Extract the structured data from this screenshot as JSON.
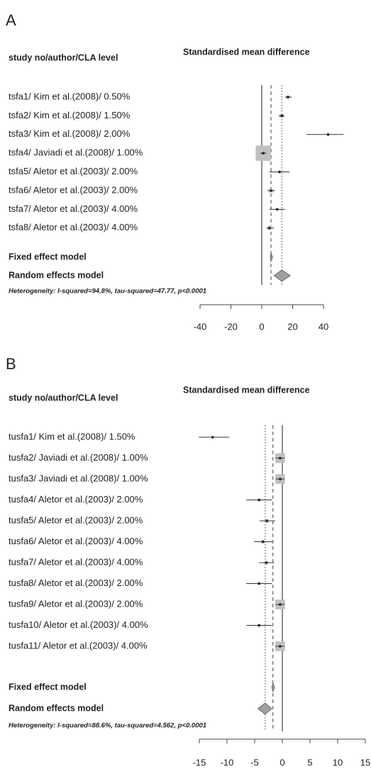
{
  "chart_data": [
    {
      "type": "forest",
      "panel_label": "A",
      "column_header": "study no/author/CLA level",
      "title": "Standardised mean difference",
      "categories": [
        "tsfa1/ Kim et al.(2008)/ 0.50%",
        "tsfa2/ Kim et al.(2008)/ 1.50%",
        "tsfa3/ Kim et al.(2008)/ 2.00%",
        "tsfa4/ Javiadi et al.(2008)/ 1.00%",
        "tsfa5/ Aletor et al.(2003)/ 2.00%",
        "tsfa6/ Aletor et al.(2003)/ 2.00%",
        "tsfa7/ Aletor et al.(2003)/ 4.00%",
        "tsfa8/ Aletor et al.(2003)/ 4.00%"
      ],
      "values": [
        17,
        13,
        43,
        1,
        11.5,
        6,
        10,
        5
      ],
      "ci_lower": [
        15,
        11,
        29,
        -1,
        5,
        3.5,
        5,
        3
      ],
      "ci_upper": [
        19.5,
        15,
        53,
        3,
        18,
        8.5,
        15,
        8
      ],
      "weights": [
        2,
        3,
        0.5,
        45,
        1,
        3,
        1,
        3
      ],
      "summary_labels": [
        "Fixed effect model",
        "Random effects model"
      ],
      "summary_values": [
        6,
        13
      ],
      "summary_lower": [
        5.5,
        8
      ],
      "summary_upper": [
        7,
        18.5
      ],
      "annotation": "Heterogeneity: I-squared=94.8%, tau-squared=47.77, p<0.0001",
      "xlim": [
        -40,
        40
      ],
      "xticks": [
        -40,
        -20,
        0,
        20,
        40
      ],
      "square_color": "#c0c0c0",
      "diamond_color": "#a0a0a0"
    },
    {
      "type": "forest",
      "panel_label": "B",
      "column_header": "study no/author/CLA level",
      "title": "Standardised mean difference",
      "categories": [
        "tusfa1/ Kim et al.(2008)/ 1.50%",
        "tusfa2/ Javiadi et al.(2008)/ 1.00%",
        "tusfa3/ Javiadi et al.(2008)/ 1.00%",
        "tusfa4/ Aletor et al.(2003)/ 2.00%",
        "tusfa5/ Aletor et al.(2003)/ 2.00%",
        "tusfa6/ Aletor et al.(2003)/ 4.00%",
        "tusfa7/ Aletor et al.(2003)/ 4.00%",
        "tusfa8/ Aletor et al.(2003)/ 2.00%",
        "tusfa9/ Aletor et al.(2003)/ 2.00%",
        "tusfa10/ Aletor et al.(2003)/ 4.00%",
        "tusfa11/ Aletor et al.(2003)/ 4.00%"
      ],
      "values": [
        -12.6,
        -0.4,
        -0.4,
        -4.2,
        -2.8,
        -3.5,
        -2.9,
        -4.2,
        -0.4,
        -4.2,
        -0.4
      ],
      "ci_lower": [
        -15.1,
        -1.2,
        -1.2,
        -6.5,
        -4.1,
        -5.1,
        -4.2,
        -6.5,
        -1.2,
        -6.5,
        -1.2
      ],
      "ci_upper": [
        -9.6,
        0.4,
        0.4,
        -1.9,
        -1.3,
        -1.8,
        -1.5,
        -1.9,
        0.4,
        -1.9,
        0.4
      ],
      "weights": [
        1,
        18,
        18,
        1.5,
        2.5,
        2,
        2.5,
        1.5,
        18,
        1.5,
        18
      ],
      "summary_labels": [
        "Fixed effect model",
        "Random effects model"
      ],
      "summary_values": [
        -1.7,
        -3.1
      ],
      "summary_lower": [
        -1.9,
        -4.4
      ],
      "summary_upper": [
        -1.4,
        -1.9
      ],
      "annotation": "Heterogeneity: I-squared=88.6%, tau-squared=4.562, p<0.0001",
      "xlim": [
        -15,
        15
      ],
      "xticks": [
        -15,
        -10,
        -5,
        0,
        5,
        10,
        15
      ],
      "square_color": "#c0c0c0",
      "diamond_color": "#a0a0a0"
    }
  ]
}
